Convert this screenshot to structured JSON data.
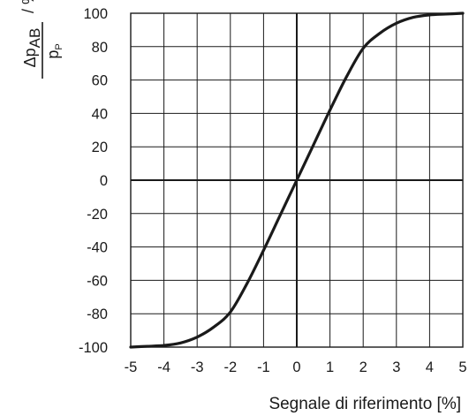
{
  "chart_data": {
    "type": "line",
    "xlabel": "Segnale di riferimento [%]",
    "ylabel": {
      "numerator_prefix": "Δp",
      "numerator_subscript": "AB",
      "denominator": "p",
      "denominator_subscript": "P",
      "unit": "/ %"
    },
    "xlim": [
      -5,
      5
    ],
    "ylim": [
      -100,
      100
    ],
    "x_ticks": [
      -5,
      -4,
      -3,
      -2,
      -1,
      0,
      1,
      2,
      3,
      4,
      5
    ],
    "y_ticks": [
      100,
      80,
      60,
      40,
      20,
      0,
      -20,
      -40,
      -60,
      -80,
      -100
    ],
    "grid": true,
    "series": [
      {
        "x": [
          -5,
          -4.5,
          -4,
          -3.5,
          -3,
          -2.5,
          -2,
          -1.5,
          -1,
          -0.5,
          0,
          0.5,
          1,
          1.5,
          2,
          2.5,
          3,
          3.5,
          4,
          4.5,
          5
        ],
        "y": [
          -100,
          -99.5,
          -99,
          -97.5,
          -94,
          -88,
          -79,
          -62,
          -42,
          -21,
          0,
          21,
          42,
          62,
          79,
          88,
          94,
          97.5,
          99,
          99.5,
          100
        ]
      }
    ],
    "color": "#1a1a1a"
  }
}
